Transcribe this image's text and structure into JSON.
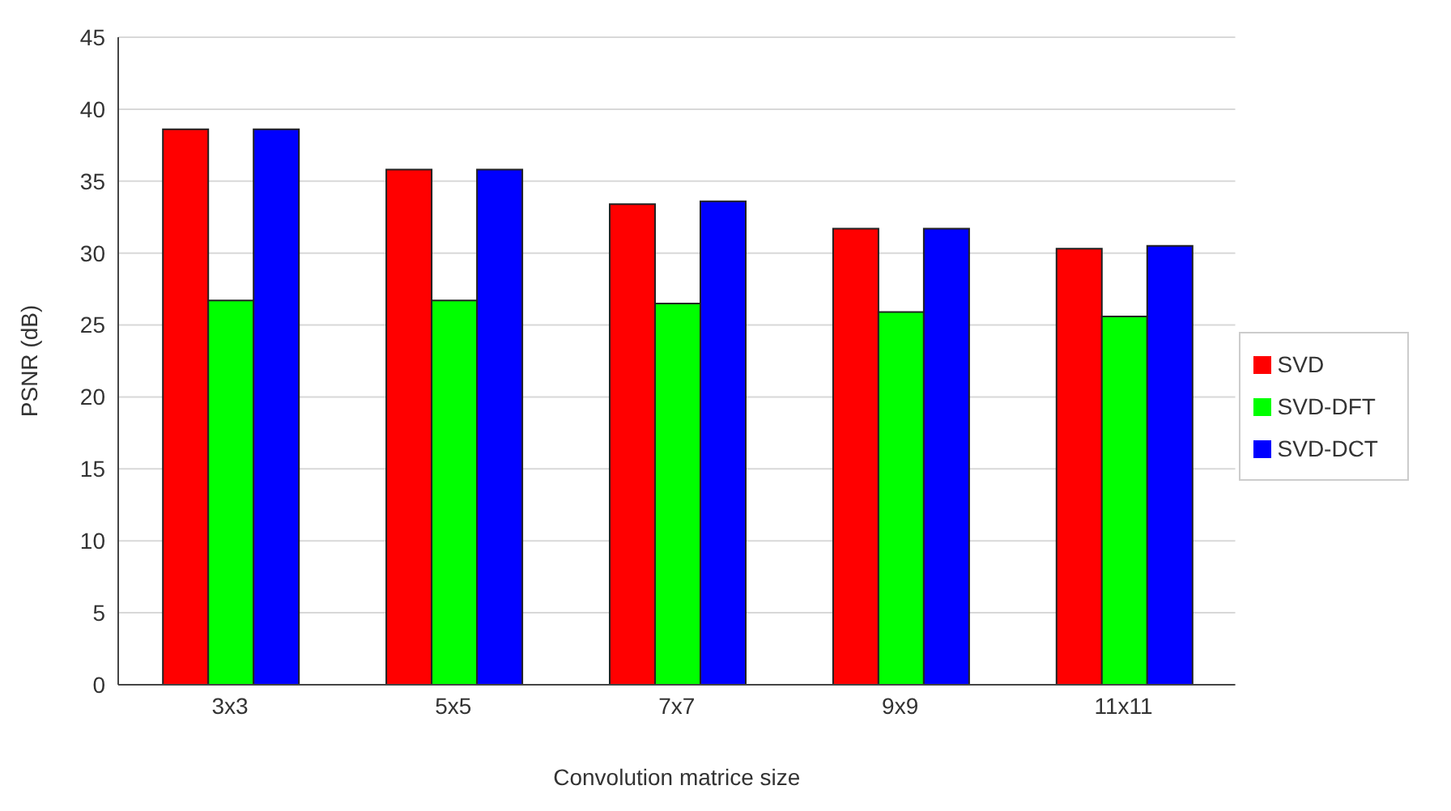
{
  "chart_data": {
    "type": "bar",
    "xlabel": "Convolution matrice size",
    "ylabel": "PSNR (dB)",
    "categories": [
      "3x3",
      "5x5",
      "7x7",
      "9x9",
      "11x11"
    ],
    "series": [
      {
        "name": "SVD",
        "color": "#ff0000",
        "values": [
          38.6,
          35.8,
          33.4,
          31.7,
          30.3
        ]
      },
      {
        "name": "SVD-DFT",
        "color": "#00ff00",
        "values": [
          26.7,
          26.7,
          26.5,
          25.9,
          25.6
        ]
      },
      {
        "name": "SVD-DCT",
        "color": "#0000ff",
        "values": [
          38.6,
          35.8,
          33.6,
          31.7,
          30.5
        ]
      }
    ],
    "ylim": [
      0,
      45
    ],
    "yticks": [
      0,
      5,
      10,
      15,
      20,
      25,
      30,
      35,
      40,
      45
    ],
    "grid": "y",
    "legend": "right"
  }
}
